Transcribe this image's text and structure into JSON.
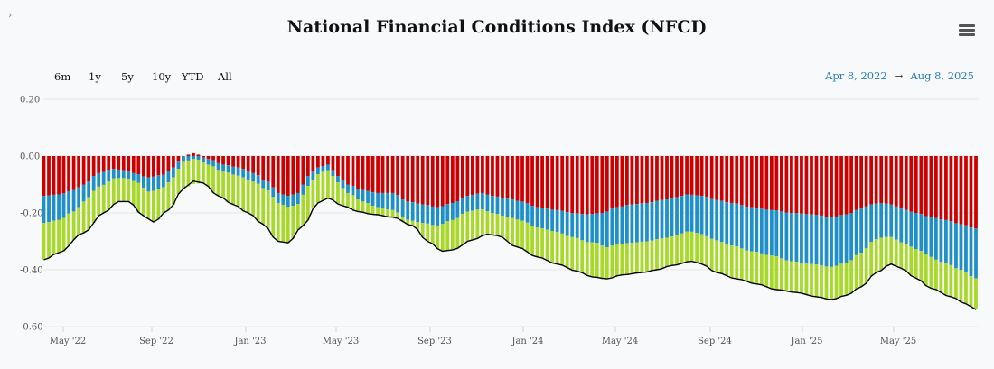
{
  "title": "National Financial Conditions Index (NFCI)",
  "menu_icon": "hamburger-menu-icon",
  "range_buttons": [
    "6m",
    "1y",
    "5y",
    "10y",
    "YTD",
    "All"
  ],
  "date_range": {
    "from": "Apr 8, 2022",
    "arrow": "→",
    "to": "Aug 8, 2025"
  },
  "chart_data": {
    "type": "bar",
    "stacked": true,
    "title": "National Financial Conditions Index (NFCI)",
    "xlabel": "",
    "ylabel": "",
    "ylim": [
      -0.6,
      0.2
    ],
    "y_ticks": [
      0.2,
      0.0,
      -0.2,
      -0.4,
      -0.6
    ],
    "y_tick_labels": [
      "0.20",
      "0.00",
      "-0.20",
      "-0.40",
      "-0.60"
    ],
    "x_tick_labels": [
      "May '22",
      "Sep '22",
      "Jan '23",
      "May '23",
      "Sep '23",
      "Jan '24",
      "May '24",
      "Sep '24",
      "Jan '25",
      "May '25"
    ],
    "x_start": "2022-04-08",
    "x_end": "2025-08-08",
    "frequency": "weekly",
    "colors": {
      "risk": "#cc0000",
      "credit": "#1e8fc8",
      "leverage": "#a8d82a",
      "line": "#000000"
    },
    "series_anchors": {
      "nfci": [
        [
          0,
          -0.365
        ],
        [
          3,
          -0.34
        ],
        [
          8,
          -0.27
        ],
        [
          12,
          -0.2
        ],
        [
          15,
          -0.16
        ],
        [
          17,
          -0.16
        ],
        [
          20,
          -0.21
        ],
        [
          22,
          -0.232
        ],
        [
          25,
          -0.19
        ],
        [
          28,
          -0.115
        ],
        [
          30,
          -0.088
        ],
        [
          32,
          -0.095
        ],
        [
          35,
          -0.14
        ],
        [
          38,
          -0.17
        ],
        [
          41,
          -0.2
        ],
        [
          44,
          -0.24
        ],
        [
          47,
          -0.3
        ],
        [
          49,
          -0.305
        ],
        [
          52,
          -0.245
        ],
        [
          55,
          -0.165
        ],
        [
          57,
          -0.148
        ],
        [
          60,
          -0.175
        ],
        [
          63,
          -0.195
        ],
        [
          66,
          -0.205
        ],
        [
          70,
          -0.215
        ],
        [
          74,
          -0.245
        ],
        [
          77,
          -0.3
        ],
        [
          80,
          -0.335
        ],
        [
          82,
          -0.33
        ],
        [
          86,
          -0.295
        ],
        [
          89,
          -0.275
        ],
        [
          91,
          -0.28
        ],
        [
          95,
          -0.32
        ],
        [
          99,
          -0.355
        ],
        [
          103,
          -0.38
        ],
        [
          107,
          -0.405
        ],
        [
          110,
          -0.425
        ],
        [
          113,
          -0.432
        ],
        [
          116,
          -0.418
        ],
        [
          120,
          -0.41
        ],
        [
          123,
          -0.4
        ],
        [
          126,
          -0.385
        ],
        [
          130,
          -0.37
        ],
        [
          132,
          -0.38
        ],
        [
          135,
          -0.41
        ],
        [
          139,
          -0.432
        ],
        [
          143,
          -0.45
        ],
        [
          147,
          -0.47
        ],
        [
          151,
          -0.48
        ],
        [
          155,
          -0.495
        ],
        [
          158,
          -0.505
        ],
        [
          161,
          -0.49
        ],
        [
          164,
          -0.46
        ],
        [
          167,
          -0.41
        ],
        [
          170,
          -0.38
        ],
        [
          172,
          -0.395
        ],
        [
          175,
          -0.43
        ],
        [
          178,
          -0.465
        ],
        [
          182,
          -0.495
        ],
        [
          185,
          -0.52
        ],
        [
          187,
          -0.54
        ]
      ],
      "risk": [
        [
          0,
          -0.14
        ],
        [
          3,
          -0.135
        ],
        [
          6,
          -0.12
        ],
        [
          8,
          -0.1
        ],
        [
          11,
          -0.06
        ],
        [
          14,
          -0.045
        ],
        [
          16,
          -0.05
        ],
        [
          18,
          -0.06
        ],
        [
          21,
          -0.075
        ],
        [
          24,
          -0.065
        ],
        [
          26,
          -0.04
        ],
        [
          28,
          0.0
        ],
        [
          30,
          0.01
        ],
        [
          33,
          -0.01
        ],
        [
          36,
          -0.03
        ],
        [
          39,
          -0.04
        ],
        [
          42,
          -0.06
        ],
        [
          45,
          -0.09
        ],
        [
          47,
          -0.13
        ],
        [
          49,
          -0.14
        ],
        [
          51,
          -0.13
        ],
        [
          53,
          -0.07
        ],
        [
          55,
          -0.04
        ],
        [
          57,
          -0.03
        ],
        [
          59,
          -0.07
        ],
        [
          61,
          -0.1
        ],
        [
          64,
          -0.12
        ],
        [
          67,
          -0.13
        ],
        [
          70,
          -0.13
        ],
        [
          73,
          -0.16
        ],
        [
          76,
          -0.17
        ],
        [
          79,
          -0.18
        ],
        [
          82,
          -0.165
        ],
        [
          85,
          -0.14
        ],
        [
          88,
          -0.13
        ],
        [
          90,
          -0.14
        ],
        [
          93,
          -0.15
        ],
        [
          96,
          -0.16
        ],
        [
          99,
          -0.18
        ],
        [
          103,
          -0.19
        ],
        [
          106,
          -0.2
        ],
        [
          109,
          -0.205
        ],
        [
          112,
          -0.2
        ],
        [
          115,
          -0.18
        ],
        [
          118,
          -0.17
        ],
        [
          121,
          -0.165
        ],
        [
          124,
          -0.155
        ],
        [
          127,
          -0.145
        ],
        [
          129,
          -0.135
        ],
        [
          132,
          -0.14
        ],
        [
          135,
          -0.155
        ],
        [
          138,
          -0.165
        ],
        [
          142,
          -0.18
        ],
        [
          146,
          -0.19
        ],
        [
          150,
          -0.2
        ],
        [
          154,
          -0.205
        ],
        [
          158,
          -0.215
        ],
        [
          161,
          -0.205
        ],
        [
          164,
          -0.185
        ],
        [
          166,
          -0.17
        ],
        [
          168,
          -0.165
        ],
        [
          170,
          -0.17
        ],
        [
          172,
          -0.185
        ],
        [
          175,
          -0.2
        ],
        [
          178,
          -0.215
        ],
        [
          181,
          -0.225
        ],
        [
          184,
          -0.24
        ],
        [
          187,
          -0.255
        ]
      ],
      "credit": [
        [
          0,
          -0.095
        ],
        [
          3,
          -0.09
        ],
        [
          6,
          -0.075
        ],
        [
          9,
          -0.055
        ],
        [
          12,
          -0.045
        ],
        [
          15,
          -0.03
        ],
        [
          17,
          -0.025
        ],
        [
          19,
          -0.03
        ],
        [
          21,
          -0.05
        ],
        [
          23,
          -0.05
        ],
        [
          25,
          -0.04
        ],
        [
          28,
          -0.02
        ],
        [
          30,
          -0.01
        ],
        [
          33,
          -0.02
        ],
        [
          36,
          -0.025
        ],
        [
          40,
          -0.03
        ],
        [
          44,
          -0.03
        ],
        [
          47,
          -0.035
        ],
        [
          50,
          -0.04
        ],
        [
          53,
          -0.035
        ],
        [
          56,
          -0.02
        ],
        [
          58,
          -0.02
        ],
        [
          61,
          -0.03
        ],
        [
          64,
          -0.04
        ],
        [
          67,
          -0.05
        ],
        [
          70,
          -0.06
        ],
        [
          74,
          -0.065
        ],
        [
          78,
          -0.065
        ],
        [
          82,
          -0.06
        ],
        [
          86,
          -0.055
        ],
        [
          90,
          -0.06
        ],
        [
          94,
          -0.065
        ],
        [
          98,
          -0.07
        ],
        [
          102,
          -0.075
        ],
        [
          106,
          -0.085
        ],
        [
          110,
          -0.1
        ],
        [
          114,
          -0.13
        ],
        [
          118,
          -0.135
        ],
        [
          122,
          -0.135
        ],
        [
          126,
          -0.135
        ],
        [
          130,
          -0.13
        ],
        [
          134,
          -0.14
        ],
        [
          138,
          -0.15
        ],
        [
          142,
          -0.155
        ],
        [
          146,
          -0.16
        ],
        [
          150,
          -0.17
        ],
        [
          154,
          -0.175
        ],
        [
          158,
          -0.175
        ],
        [
          161,
          -0.17
        ],
        [
          164,
          -0.155
        ],
        [
          167,
          -0.125
        ],
        [
          170,
          -0.115
        ],
        [
          173,
          -0.12
        ],
        [
          176,
          -0.13
        ],
        [
          180,
          -0.15
        ],
        [
          184,
          -0.16
        ],
        [
          187,
          -0.175
        ]
      ]
    }
  }
}
